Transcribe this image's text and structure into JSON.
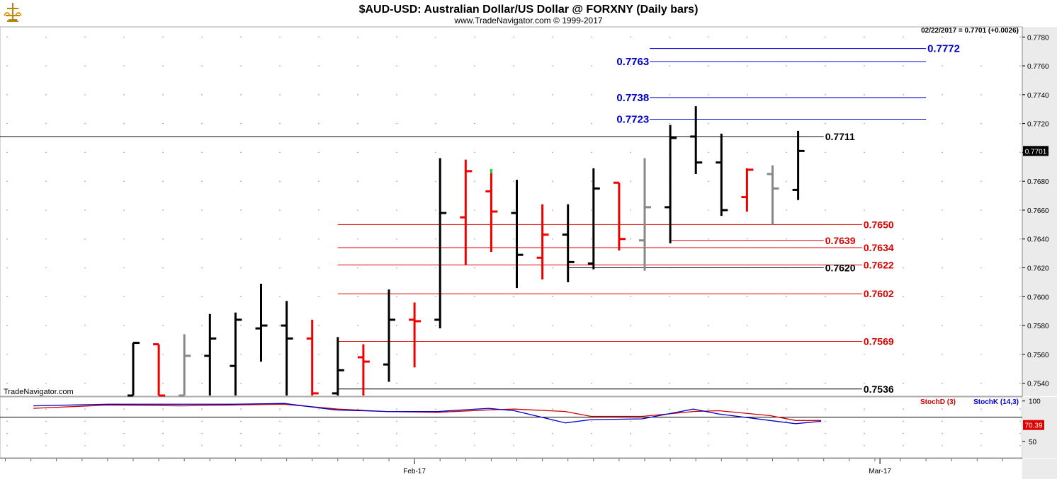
{
  "header": {
    "title": "$AUD-USD:  Australian Dollar/US Dollar @ FORXNY  (Daily bars)",
    "subtitle": "www.TradeNavigator.com © 1999-2017",
    "quote": "02/22/2017 = 0.7701 (+0.0026)",
    "watermark": "TradeNavigator.com"
  },
  "colors": {
    "black_bar": "#000000",
    "red_bar": "#ee0000",
    "gray_bar": "#888888",
    "green_tick": "#22cc22",
    "blue_level": "#0000cc",
    "red_level": "#dd0000",
    "stoch_d": "#cc0000",
    "stoch_k": "#0000cc",
    "panel_bg": "#ffffff",
    "axis_bg": "#ebebeb"
  },
  "chart_data": {
    "type": "ohlc",
    "price_axis": {
      "ylim": [
        0.7531,
        0.7787
      ],
      "ticks": [
        0.754,
        0.756,
        0.758,
        0.76,
        0.762,
        0.764,
        0.766,
        0.768,
        0.77,
        0.772,
        0.774,
        0.776,
        0.778
      ],
      "last_price": "0.7701"
    },
    "bars": [
      {
        "o": 0.753,
        "h": 0.7568,
        "l": 0.753,
        "c": 0.7568,
        "color": "black"
      },
      {
        "o": 0.7567,
        "h": 0.7567,
        "l": 0.753,
        "c": 0.753,
        "color": "red"
      },
      {
        "o": 0.753,
        "h": 0.7574,
        "l": 0.753,
        "c": 0.7559,
        "color": "gray"
      },
      {
        "o": 0.7559,
        "h": 0.7588,
        "l": 0.753,
        "c": 0.7571,
        "color": "black"
      },
      {
        "o": 0.7552,
        "h": 0.7589,
        "l": 0.753,
        "c": 0.7584,
        "color": "black"
      },
      {
        "o": 0.7578,
        "h": 0.7609,
        "l": 0.7555,
        "c": 0.758,
        "color": "black"
      },
      {
        "o": 0.758,
        "h": 0.7597,
        "l": 0.753,
        "c": 0.7571,
        "color": "black"
      },
      {
        "o": 0.7571,
        "h": 0.7584,
        "l": 0.753,
        "c": 0.7533,
        "color": "red"
      },
      {
        "o": 0.7533,
        "h": 0.7572,
        "l": 0.753,
        "c": 0.7549,
        "color": "black"
      },
      {
        "o": 0.7558,
        "h": 0.7567,
        "l": 0.753,
        "c": 0.7555,
        "color": "red"
      },
      {
        "o": 0.7553,
        "h": 0.7605,
        "l": 0.7541,
        "c": 0.7584,
        "color": "black"
      },
      {
        "o": 0.7584,
        "h": 0.7596,
        "l": 0.7551,
        "c": 0.7583,
        "color": "red"
      },
      {
        "o": 0.7584,
        "h": 0.7696,
        "l": 0.7578,
        "c": 0.7658,
        "color": "black"
      },
      {
        "o": 0.7655,
        "h": 0.7695,
        "l": 0.7622,
        "c": 0.7687,
        "color": "red"
      },
      {
        "o": 0.7673,
        "h": 0.7687,
        "l": 0.7631,
        "c": 0.7659,
        "color": "red"
      },
      {
        "o": 0.7658,
        "h": 0.7681,
        "l": 0.7606,
        "c": 0.7629,
        "color": "black"
      },
      {
        "o": 0.7627,
        "h": 0.7664,
        "l": 0.7612,
        "c": 0.7643,
        "color": "red"
      },
      {
        "o": 0.7643,
        "h": 0.7664,
        "l": 0.761,
        "c": 0.7624,
        "color": "black"
      },
      {
        "o": 0.7623,
        "h": 0.7689,
        "l": 0.7619,
        "c": 0.7675,
        "color": "black"
      },
      {
        "o": 0.7679,
        "h": 0.7679,
        "l": 0.7632,
        "c": 0.764,
        "color": "red"
      },
      {
        "o": 0.7639,
        "h": 0.7696,
        "l": 0.7618,
        "c": 0.7662,
        "color": "gray"
      },
      {
        "o": 0.7662,
        "h": 0.7719,
        "l": 0.7637,
        "c": 0.771,
        "color": "black"
      },
      {
        "o": 0.7711,
        "h": 0.7732,
        "l": 0.7685,
        "c": 0.7693,
        "color": "black"
      },
      {
        "o": 0.7693,
        "h": 0.7713,
        "l": 0.7656,
        "c": 0.766,
        "color": "black"
      },
      {
        "o": 0.7669,
        "h": 0.7689,
        "l": 0.7659,
        "c": 0.7688,
        "color": "red"
      },
      {
        "o": 0.7685,
        "h": 0.7691,
        "l": 0.765,
        "c": 0.7675,
        "color": "gray"
      },
      {
        "o": 0.7674,
        "h": 0.7715,
        "l": 0.7667,
        "c": 0.7701,
        "color": "black"
      }
    ],
    "levels": [
      {
        "label": "0.7772",
        "value": 0.7772,
        "color": "blue",
        "from_bar": 20.2,
        "to_bar": 31.0,
        "label_side": "right"
      },
      {
        "label": "0.7763",
        "value": 0.7763,
        "color": "blue",
        "from_bar": 20.2,
        "to_bar": 31.0,
        "label_side": "left"
      },
      {
        "label": "0.7738",
        "value": 0.7738,
        "color": "blue",
        "from_bar": 20.2,
        "to_bar": 31.0,
        "label_side": "left"
      },
      {
        "label": "0.7723",
        "value": 0.7723,
        "color": "blue",
        "from_bar": 20.2,
        "to_bar": 31.0,
        "label_side": "left"
      },
      {
        "label": "0.7711",
        "value": 0.7711,
        "color": "black",
        "from_bar": -5.3,
        "to_bar": 27.0,
        "label_side": "right"
      },
      {
        "label": "0.7650",
        "value": 0.765,
        "color": "red",
        "from_bar": 8.0,
        "to_bar": 28.5,
        "label_side": "right"
      },
      {
        "label": "0.7639",
        "value": 0.7639,
        "color": "red",
        "from_bar": 21.0,
        "to_bar": 27.0,
        "label_side": "right"
      },
      {
        "label": "0.7634",
        "value": 0.7634,
        "color": "red",
        "from_bar": 8.0,
        "to_bar": 28.5,
        "label_side": "right"
      },
      {
        "label": "0.7622",
        "value": 0.7622,
        "color": "red",
        "from_bar": 8.0,
        "to_bar": 28.5,
        "label_side": "right"
      },
      {
        "label": "0.7620",
        "value": 0.762,
        "color": "black",
        "from_bar": 17.0,
        "to_bar": 27.0,
        "label_side": "right"
      },
      {
        "label": "0.7602",
        "value": 0.7602,
        "color": "red",
        "from_bar": 8.0,
        "to_bar": 28.5,
        "label_side": "right"
      },
      {
        "label": "0.7569",
        "value": 0.7569,
        "color": "red",
        "from_bar": 8.0,
        "to_bar": 28.5,
        "label_side": "right"
      },
      {
        "label": "0.7536",
        "value": 0.7536,
        "color": "black",
        "from_bar": 8.0,
        "to_bar": 28.5,
        "label_side": "right"
      }
    ],
    "time_axis": {
      "labels": [
        {
          "text": "Feb-17",
          "bar": 11.0
        },
        {
          "text": "Mar-17",
          "bar": 29.2
        }
      ]
    },
    "stochastic": {
      "ylim": [
        30,
        105
      ],
      "ticks": [
        100,
        50
      ],
      "last_value": "70.39",
      "reference_level": 80,
      "d_label": "StochD (3)",
      "k_label": "StochK (14,3)",
      "d_values": [
        [
          -3.9,
          91
        ],
        [
          -1.0,
          95
        ],
        [
          1.9,
          94
        ],
        [
          3.9,
          95
        ],
        [
          5.9,
          96
        ],
        [
          8.0,
          90
        ],
        [
          9.9,
          87
        ],
        [
          11.9,
          86
        ],
        [
          13.9,
          89
        ],
        [
          14.9,
          90
        ],
        [
          16.9,
          87
        ],
        [
          17.9,
          81
        ],
        [
          19.9,
          81
        ],
        [
          20.9,
          84
        ],
        [
          21.9,
          87
        ],
        [
          22.9,
          88
        ],
        [
          24.9,
          82
        ],
        [
          25.9,
          76
        ],
        [
          26.9,
          76
        ]
      ],
      "k_values": [
        [
          -3.9,
          94
        ],
        [
          -1.0,
          96
        ],
        [
          1.9,
          96
        ],
        [
          3.9,
          96
        ],
        [
          5.9,
          97
        ],
        [
          7.9,
          89
        ],
        [
          9.9,
          87
        ],
        [
          11.9,
          87
        ],
        [
          13.9,
          91
        ],
        [
          14.9,
          88
        ],
        [
          16.9,
          73
        ],
        [
          17.9,
          77
        ],
        [
          19.9,
          78
        ],
        [
          20.9,
          84
        ],
        [
          21.9,
          90
        ],
        [
          22.9,
          84
        ],
        [
          24.9,
          76
        ],
        [
          25.9,
          72
        ],
        [
          26.9,
          75
        ]
      ]
    }
  }
}
